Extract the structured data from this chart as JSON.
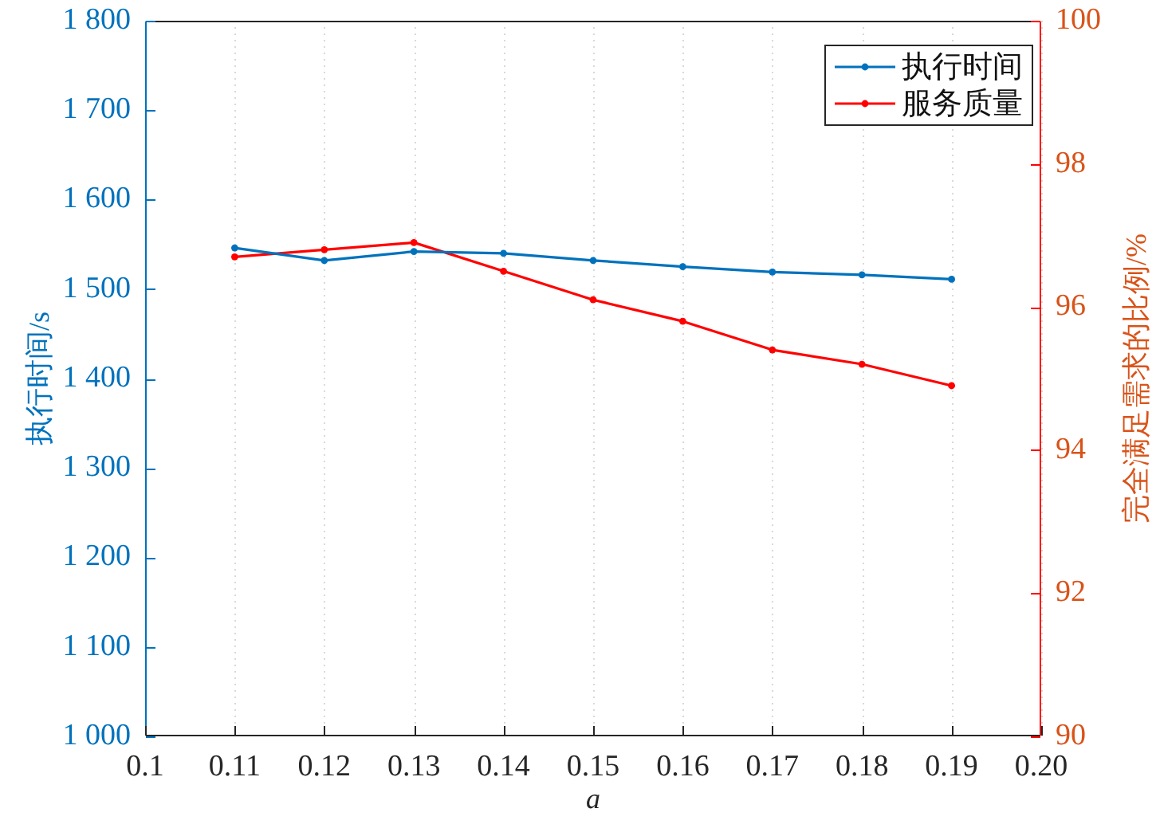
{
  "chart_data": {
    "type": "line",
    "xlabel": "a",
    "ylabel": "执行时间/s",
    "y2label": "完全满足需求的比例/%",
    "x": [
      0.11,
      0.12,
      0.13,
      0.14,
      0.15,
      0.16,
      0.17,
      0.18,
      0.19
    ],
    "series": [
      {
        "name": "执行时间",
        "color": "#0072bd",
        "values": [
          1546,
          1532,
          1542,
          1540,
          1532,
          1525,
          1519,
          1516,
          1511
        ]
      },
      {
        "name": "服务质量",
        "color": "#ff0000",
        "axis": "y2",
        "values": [
          96.7,
          96.8,
          96.9,
          96.5,
          96.1,
          95.8,
          95.4,
          95.2,
          94.9
        ]
      }
    ],
    "xlim": [
      0.1,
      0.2
    ],
    "xticks": [
      0.1,
      0.11,
      0.12,
      0.13,
      0.14,
      0.15,
      0.16,
      0.17,
      0.18,
      0.19,
      {
        "value": 0.2,
        "label": "0.20"
      }
    ],
    "ylim": [
      1000,
      1800
    ],
    "yticks": [
      {
        "value": 1000,
        "label": "1 000"
      },
      {
        "value": 1100,
        "label": "1 100"
      },
      {
        "value": 1200,
        "label": "1 200"
      },
      {
        "value": 1300,
        "label": "1 300"
      },
      {
        "value": 1400,
        "label": "1 400"
      },
      {
        "value": 1500,
        "label": "1 500"
      },
      {
        "value": 1600,
        "label": "1 600"
      },
      {
        "value": 1700,
        "label": "1 700"
      },
      {
        "value": 1800,
        "label": "1 800"
      }
    ],
    "y2lim": [
      90,
      100
    ],
    "y2ticks": [
      90,
      92,
      94,
      96,
      98,
      100
    ],
    "grid": "x",
    "legend": "top right",
    "marker": "circle",
    "line_style": "solid"
  }
}
